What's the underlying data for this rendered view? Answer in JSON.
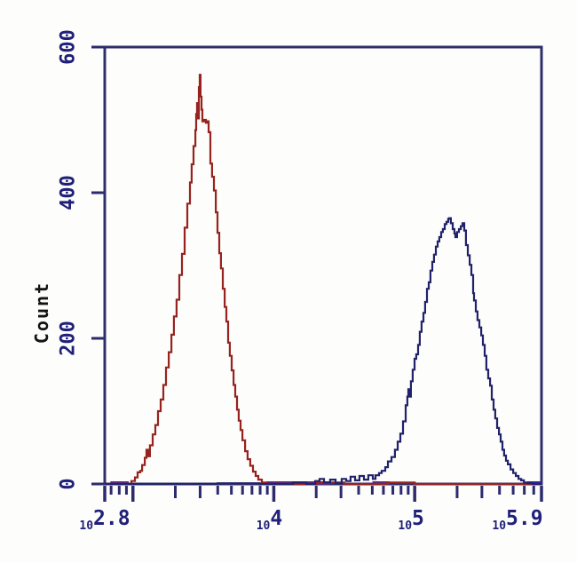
{
  "figure": {
    "background": "#fdfdfb",
    "frame_color": "#2e2e6a",
    "tick_color": "#2b2b6e",
    "tick_label_color": "#20207a"
  },
  "chart_data": {
    "type": "line",
    "subtype": "flow-cytometry-overlay-histogram",
    "title": "",
    "xlabel": "",
    "ylabel": "Count",
    "x_scale": "log10",
    "x_range_log10": [
      2.8,
      5.9
    ],
    "ylim": [
      0,
      600
    ],
    "grid": false,
    "legend": "none",
    "y_ticks": [
      0,
      200,
      400,
      600
    ],
    "y_tick_labels": [
      "0",
      "200",
      "400",
      "600"
    ],
    "x_major_ticks_log10": [
      2.8,
      3.0,
      4.0,
      5.0,
      5.9
    ],
    "x_medium_ticks_log10": [
      3.301,
      3.477,
      4.301,
      4.477,
      5.301,
      5.477
    ],
    "x_minor_ticks_log10": [
      2.845,
      2.903,
      2.954,
      3.602,
      3.699,
      3.778,
      3.845,
      3.903,
      3.954,
      4.602,
      4.699,
      4.778,
      4.845,
      4.903,
      4.954,
      5.602,
      5.699,
      5.778,
      5.845
    ],
    "x_tick_labels": [
      {
        "log10": 2.8,
        "base": "10",
        "exp": "2.8",
        "dx": 0
      },
      {
        "log10": 4.0,
        "base": "10",
        "exp": "4",
        "dx": -5
      },
      {
        "log10": 5.0,
        "base": "10",
        "exp": "5",
        "dx": -4
      },
      {
        "log10": 5.9,
        "base": "10",
        "exp": "5.9",
        "dx": -27
      }
    ],
    "series": [
      {
        "name": "red-histogram",
        "color": "#96231f",
        "peak_mode_log10": 3.474,
        "peak_count": 562,
        "points": [
          [
            2.8,
            0
          ],
          [
            2.9,
            0
          ],
          [
            2.97,
            0
          ],
          [
            2.989,
            4
          ],
          [
            3.014,
            9
          ],
          [
            3.033,
            16
          ],
          [
            3.052,
            18
          ],
          [
            3.065,
            26
          ],
          [
            3.084,
            36
          ],
          [
            3.096,
            47
          ],
          [
            3.109,
            38
          ],
          [
            3.121,
            53
          ],
          [
            3.14,
            68
          ],
          [
            3.159,
            81
          ],
          [
            3.178,
            100
          ],
          [
            3.197,
            116
          ],
          [
            3.216,
            136
          ],
          [
            3.235,
            160
          ],
          [
            3.254,
            181
          ],
          [
            3.273,
            205
          ],
          [
            3.291,
            230
          ],
          [
            3.31,
            253
          ],
          [
            3.329,
            287
          ],
          [
            3.348,
            316
          ],
          [
            3.367,
            352
          ],
          [
            3.386,
            385
          ],
          [
            3.405,
            414
          ],
          [
            3.417,
            439
          ],
          [
            3.43,
            464
          ],
          [
            3.443,
            486
          ],
          [
            3.449,
            508
          ],
          [
            3.455,
            523
          ],
          [
            3.462,
            502
          ],
          [
            3.468,
            545
          ],
          [
            3.474,
            562
          ],
          [
            3.48,
            532
          ],
          [
            3.487,
            514
          ],
          [
            3.493,
            498
          ],
          [
            3.506,
            500
          ],
          [
            3.518,
            496
          ],
          [
            3.531,
            498
          ],
          [
            3.537,
            483
          ],
          [
            3.55,
            440
          ],
          [
            3.562,
            422
          ],
          [
            3.575,
            403
          ],
          [
            3.588,
            373
          ],
          [
            3.6,
            345
          ],
          [
            3.613,
            317
          ],
          [
            3.625,
            296
          ],
          [
            3.638,
            268
          ],
          [
            3.651,
            243
          ],
          [
            3.663,
            223
          ],
          [
            3.676,
            194
          ],
          [
            3.688,
            176
          ],
          [
            3.701,
            156
          ],
          [
            3.714,
            136
          ],
          [
            3.726,
            120
          ],
          [
            3.739,
            102
          ],
          [
            3.751,
            87
          ],
          [
            3.764,
            74
          ],
          [
            3.777,
            60
          ],
          [
            3.796,
            45
          ],
          [
            3.814,
            34
          ],
          [
            3.833,
            25
          ],
          [
            3.852,
            17
          ],
          [
            3.871,
            11
          ],
          [
            3.89,
            6
          ],
          [
            3.915,
            2
          ],
          [
            3.947,
            0
          ],
          [
            4.1,
            0
          ],
          [
            4.3,
            2
          ],
          [
            4.5,
            0
          ],
          [
            4.8,
            2
          ],
          [
            5.0,
            0
          ],
          [
            5.9,
            0
          ]
        ]
      },
      {
        "name": "blue-histogram",
        "color": "#22226b",
        "peak_mode_log10": 5.245,
        "peak_count": 365,
        "points": [
          [
            2.8,
            0
          ],
          [
            3.3,
            0
          ],
          [
            3.6,
            1
          ],
          [
            3.9,
            0
          ],
          [
            4.01,
            0
          ],
          [
            4.136,
            2
          ],
          [
            4.23,
            0
          ],
          [
            4.293,
            4
          ],
          [
            4.325,
            7
          ],
          [
            4.356,
            2
          ],
          [
            4.4,
            6
          ],
          [
            4.438,
            1
          ],
          [
            4.482,
            7
          ],
          [
            4.514,
            4
          ],
          [
            4.545,
            10
          ],
          [
            4.577,
            5
          ],
          [
            4.608,
            11
          ],
          [
            4.64,
            6
          ],
          [
            4.671,
            12
          ],
          [
            4.703,
            7
          ],
          [
            4.722,
            12
          ],
          [
            4.747,
            15
          ],
          [
            4.766,
            18
          ],
          [
            4.791,
            23
          ],
          [
            4.81,
            31
          ],
          [
            4.835,
            37
          ],
          [
            4.86,
            47
          ],
          [
            4.879,
            58
          ],
          [
            4.898,
            69
          ],
          [
            4.917,
            86
          ],
          [
            4.936,
            108
          ],
          [
            4.948,
            120
          ],
          [
            4.955,
            130
          ],
          [
            4.961,
            120
          ],
          [
            4.973,
            141
          ],
          [
            4.986,
            157
          ],
          [
            4.999,
            172
          ],
          [
            5.011,
            178
          ],
          [
            5.024,
            191
          ],
          [
            5.036,
            209
          ],
          [
            5.049,
            223
          ],
          [
            5.062,
            235
          ],
          [
            5.074,
            250
          ],
          [
            5.087,
            268
          ],
          [
            5.1,
            277
          ],
          [
            5.112,
            293
          ],
          [
            5.125,
            305
          ],
          [
            5.137,
            315
          ],
          [
            5.15,
            326
          ],
          [
            5.163,
            333
          ],
          [
            5.175,
            339
          ],
          [
            5.188,
            346
          ],
          [
            5.2,
            350
          ],
          [
            5.213,
            357
          ],
          [
            5.226,
            360
          ],
          [
            5.238,
            364
          ],
          [
            5.245,
            365
          ],
          [
            5.257,
            358
          ],
          [
            5.27,
            350
          ],
          [
            5.282,
            344
          ],
          [
            5.289,
            339
          ],
          [
            5.301,
            346
          ],
          [
            5.314,
            350
          ],
          [
            5.327,
            354
          ],
          [
            5.339,
            358
          ],
          [
            5.352,
            348
          ],
          [
            5.364,
            328
          ],
          [
            5.377,
            314
          ],
          [
            5.39,
            301
          ],
          [
            5.402,
            287
          ],
          [
            5.415,
            262
          ],
          [
            5.421,
            252
          ],
          [
            5.434,
            237
          ],
          [
            5.446,
            225
          ],
          [
            5.459,
            215
          ],
          [
            5.472,
            204
          ],
          [
            5.484,
            191
          ],
          [
            5.497,
            176
          ],
          [
            5.509,
            157
          ],
          [
            5.522,
            145
          ],
          [
            5.535,
            135
          ],
          [
            5.547,
            116
          ],
          [
            5.56,
            102
          ],
          [
            5.572,
            90
          ],
          [
            5.585,
            77
          ],
          [
            5.598,
            68
          ],
          [
            5.61,
            58
          ],
          [
            5.623,
            47
          ],
          [
            5.635,
            39
          ],
          [
            5.648,
            32
          ],
          [
            5.661,
            27
          ],
          [
            5.68,
            20
          ],
          [
            5.699,
            15
          ],
          [
            5.718,
            11
          ],
          [
            5.737,
            7
          ],
          [
            5.756,
            5
          ],
          [
            5.775,
            2
          ],
          [
            5.8,
            1
          ],
          [
            5.838,
            0
          ],
          [
            5.9,
            0
          ]
        ]
      }
    ],
    "baseline_segments": [
      {
        "from": 2.84,
        "to": 2.97,
        "color": "#5c2a86"
      },
      {
        "from": 3.95,
        "to": 4.4,
        "color": "#5c2a86"
      },
      {
        "from": 4.7,
        "to": 4.82,
        "color": "#5c2a86"
      },
      {
        "from": 5.8,
        "to": 5.9,
        "color": "#2a2ab0"
      }
    ]
  }
}
